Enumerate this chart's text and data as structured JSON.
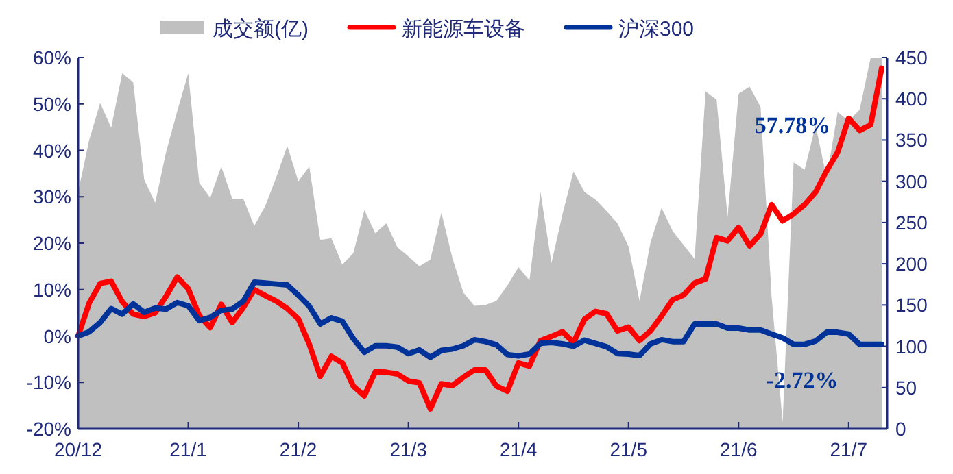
{
  "chart_data": {
    "type": "line",
    "legend": "top",
    "grid": false,
    "categories": [
      "20/12",
      null,
      null,
      null,
      null,
      null,
      null,
      null,
      null,
      null,
      "21/1",
      null,
      null,
      null,
      null,
      null,
      null,
      null,
      null,
      null,
      "21/2",
      null,
      null,
      null,
      null,
      null,
      null,
      null,
      null,
      null,
      "21/3",
      null,
      null,
      null,
      null,
      null,
      null,
      null,
      null,
      null,
      "21/4",
      null,
      null,
      null,
      null,
      null,
      null,
      null,
      null,
      null,
      "21/5",
      null,
      null,
      null,
      null,
      null,
      null,
      null,
      null,
      null,
      "21/6",
      null,
      null,
      null,
      null,
      null,
      null,
      null,
      null,
      null,
      "21/7",
      null,
      null,
      null
    ],
    "ylim": [
      -20,
      60
    ],
    "yticks": [
      {
        "value": -20,
        "label": "-20%"
      },
      {
        "value": -10,
        "label": "-10%"
      },
      {
        "value": 0,
        "label": "0%"
      },
      {
        "value": 10,
        "label": "10%"
      },
      {
        "value": 20,
        "label": "20%"
      },
      {
        "value": 30,
        "label": "30%"
      },
      {
        "value": 40,
        "label": "40%"
      },
      {
        "value": 50,
        "label": "50%"
      },
      {
        "value": 60,
        "label": "60%"
      }
    ],
    "y2lim": [
      0,
      450
    ],
    "y2ticks": [
      0,
      50,
      100,
      150,
      200,
      250,
      300,
      350,
      400,
      450
    ],
    "annotations": [
      "57.78%",
      "-2.72%"
    ],
    "series": [
      {
        "name": "成交额(亿)",
        "type": "area",
        "axis": "y2",
        "color": "#c0c0c0",
        "values": [
          287,
          350,
          395,
          365,
          431,
          420,
          302,
          274,
          336,
          385,
          431,
          298,
          280,
          318,
          279,
          279,
          246,
          270,
          305,
          343,
          300,
          318,
          229,
          231,
          199,
          213,
          265,
          237,
          249,
          220,
          209,
          197,
          205,
          262,
          207,
          165,
          149,
          150,
          155,
          174,
          196,
          180,
          287,
          201,
          260,
          312,
          287,
          278,
          264,
          249,
          221,
          155,
          226,
          268,
          240,
          223,
          206,
          409,
          399,
          257,
          406,
          415,
          390,
          160,
          8,
          323,
          314,
          368,
          304,
          384,
          373,
          387,
          450,
          450
        ]
      },
      {
        "name": "新能源车设备",
        "type": "line",
        "color": "#ff0000",
        "values": [
          0,
          7.1,
          11.3,
          11.8,
          7.4,
          4.7,
          4.2,
          5.0,
          8.6,
          12.7,
          10.2,
          4.4,
          1.8,
          6.8,
          2.9,
          6.1,
          10.0,
          8.7,
          7.5,
          5.9,
          3.7,
          -1.8,
          -8.7,
          -4.4,
          -5.8,
          -10.8,
          -12.9,
          -7.7,
          -7.8,
          -8.2,
          -9.7,
          -10.1,
          -15.7,
          -10.3,
          -10.7,
          -8.9,
          -7.3,
          -7.3,
          -10.8,
          -11.9,
          -5.8,
          -6.5,
          -1.0,
          -0.1,
          0.9,
          -1.4,
          3.6,
          5.3,
          4.8,
          1.1,
          1.9,
          -1.0,
          1.1,
          4.3,
          7.8,
          8.8,
          11.4,
          12.3,
          21.2,
          20.5,
          23.4,
          19.4,
          22.0,
          28.3,
          24.8,
          26.3,
          28.3,
          31.0,
          35.6,
          39.6,
          46.9,
          44.3,
          45.5,
          57.7
        ]
      },
      {
        "name": "沪深300",
        "type": "line",
        "color": "#003399",
        "values": [
          0,
          0.9,
          2.9,
          5.9,
          4.7,
          6.9,
          5.1,
          6.0,
          5.8,
          7.2,
          6.5,
          3.3,
          4.0,
          5.5,
          5.8,
          7.5,
          11.6,
          11.4,
          11.2,
          11.0,
          8.8,
          6.4,
          2.6,
          3.9,
          3.2,
          -0.6,
          -3.5,
          -2.1,
          -2.1,
          -2.4,
          -3.8,
          -3.0,
          -4.6,
          -3.1,
          -2.8,
          -2.1,
          -0.8,
          -1.2,
          -1.9,
          -4.0,
          -4.3,
          -3.9,
          -1.6,
          -1.4,
          -1.7,
          -2.2,
          -0.9,
          -1.6,
          -2.3,
          -3.8,
          -3.9,
          -4.2,
          -1.7,
          -0.8,
          -1.2,
          -1.2,
          2.6,
          2.6,
          2.6,
          1.7,
          1.7,
          1.3,
          1.3,
          0.4,
          -0.4,
          -1.8,
          -1.8,
          -1.1,
          0.8,
          0.8,
          0.4,
          -1.8,
          -1.8,
          -1.8
        ]
      }
    ]
  }
}
